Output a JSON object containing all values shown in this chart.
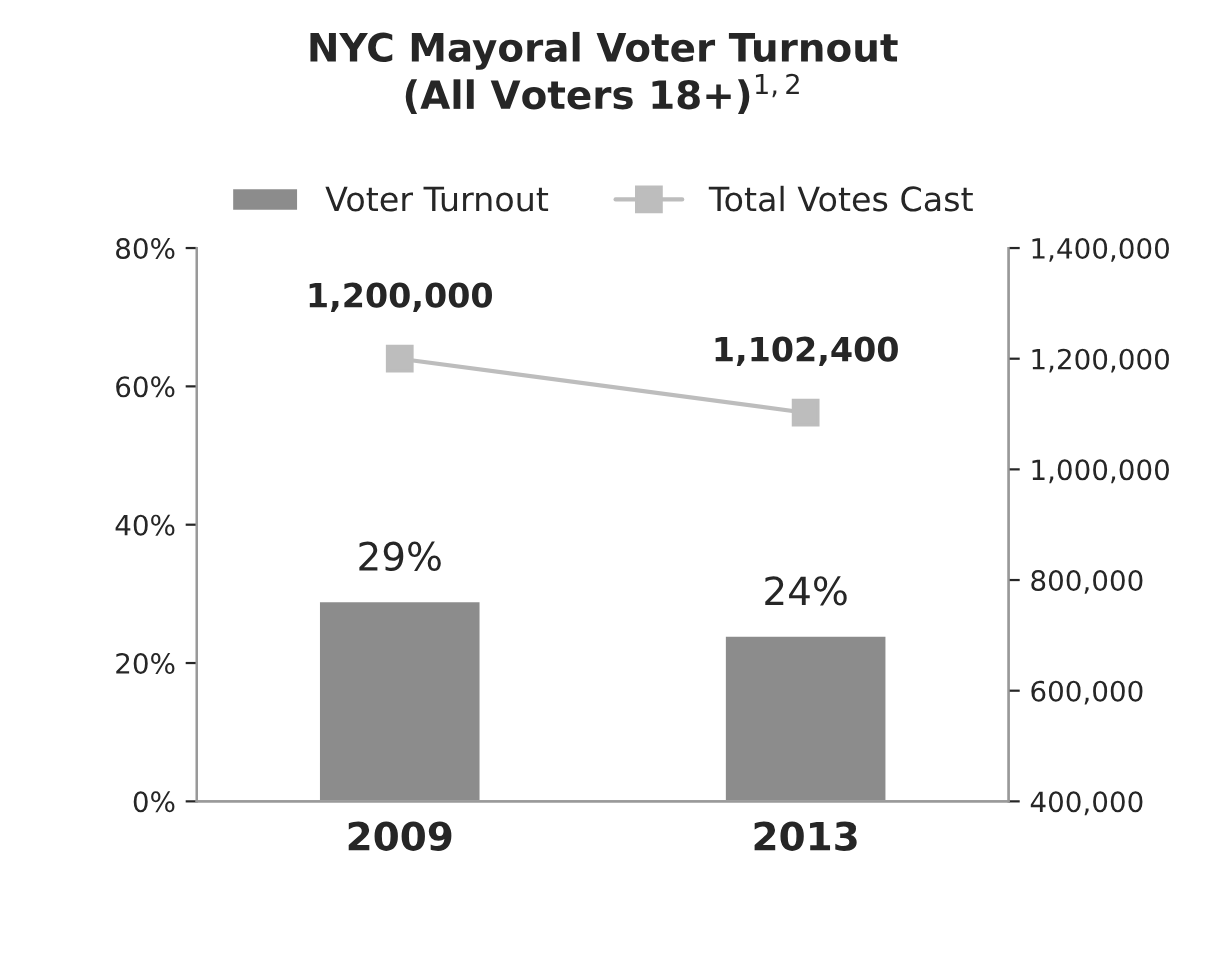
{
  "chart_data": {
    "type": "bar",
    "title": "NYC Mayoral Voter Turnout\n(All Voters 18+)$^{1,2}$",
    "categories": [
      "2009",
      "2013"
    ],
    "series": [
      {
        "name": "Voter Turnout",
        "color": "#8c8c8c",
        "values": [
          29,
          24
        ],
        "value_labels": [
          "29%",
          "24%"
        ]
      },
      {
        "name": "Total Votes Cast",
        "type": "line",
        "axis": "y2",
        "color": "#bdbdbd",
        "marker": "square",
        "values": [
          1200000,
          1102400
        ],
        "value_labels": [
          "1,200,000",
          "1,102,400"
        ]
      }
    ],
    "ylim": [
      0,
      80
    ],
    "yticks": [
      {
        "value": 0,
        "label": "0%"
      },
      {
        "value": 20,
        "label": "20%"
      },
      {
        "value": 40,
        "label": "40%"
      },
      {
        "value": 60,
        "label": "60%"
      },
      {
        "value": 80,
        "label": "80%"
      }
    ],
    "y2lim": [
      400000,
      1400000
    ],
    "y2ticks": [
      {
        "value": 400000,
        "label": "400,000"
      },
      {
        "value": 600000,
        "label": "600,000"
      },
      {
        "value": 800000,
        "label": "800,000"
      },
      {
        "value": 1000000,
        "label": "1,000,000"
      },
      {
        "value": 1200000,
        "label": "1,200,000"
      },
      {
        "value": 1400000,
        "label": "1,400,000"
      }
    ],
    "legend": "top",
    "grid": false
  }
}
